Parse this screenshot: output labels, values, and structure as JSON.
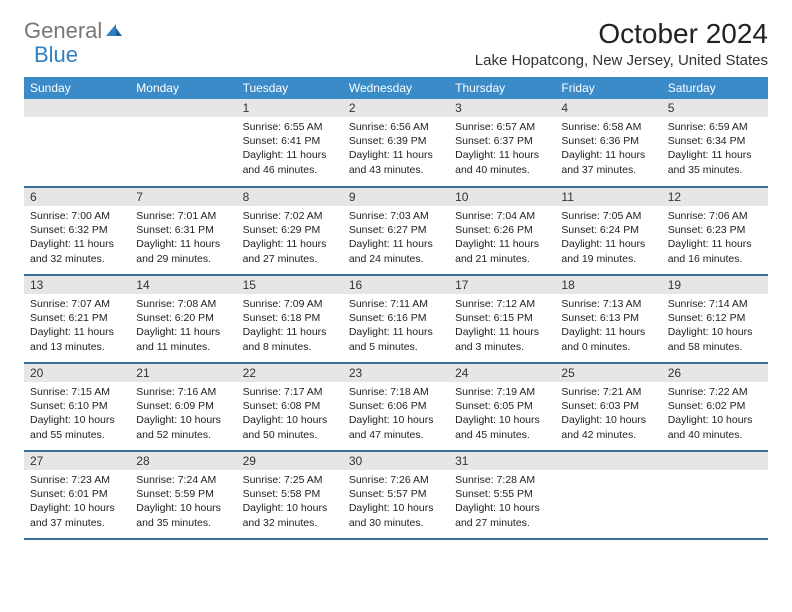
{
  "brand": {
    "part1": "General",
    "part2": "Blue"
  },
  "title": "October 2024",
  "location": "Lake Hopatcong, New Jersey, United States",
  "colors": {
    "header_bg": "#3b8bc9",
    "header_text": "#ffffff",
    "daynum_bg": "#e6e6e6",
    "row_divider": "#3b6fa0",
    "logo_blue": "#2f7fc2",
    "logo_gray": "#777777"
  },
  "weekdays": [
    "Sunday",
    "Monday",
    "Tuesday",
    "Wednesday",
    "Thursday",
    "Friday",
    "Saturday"
  ],
  "weeks": [
    [
      {
        "n": "",
        "sr": "",
        "ss": "",
        "dl": ""
      },
      {
        "n": "",
        "sr": "",
        "ss": "",
        "dl": ""
      },
      {
        "n": "1",
        "sr": "Sunrise: 6:55 AM",
        "ss": "Sunset: 6:41 PM",
        "dl": "Daylight: 11 hours and 46 minutes."
      },
      {
        "n": "2",
        "sr": "Sunrise: 6:56 AM",
        "ss": "Sunset: 6:39 PM",
        "dl": "Daylight: 11 hours and 43 minutes."
      },
      {
        "n": "3",
        "sr": "Sunrise: 6:57 AM",
        "ss": "Sunset: 6:37 PM",
        "dl": "Daylight: 11 hours and 40 minutes."
      },
      {
        "n": "4",
        "sr": "Sunrise: 6:58 AM",
        "ss": "Sunset: 6:36 PM",
        "dl": "Daylight: 11 hours and 37 minutes."
      },
      {
        "n": "5",
        "sr": "Sunrise: 6:59 AM",
        "ss": "Sunset: 6:34 PM",
        "dl": "Daylight: 11 hours and 35 minutes."
      }
    ],
    [
      {
        "n": "6",
        "sr": "Sunrise: 7:00 AM",
        "ss": "Sunset: 6:32 PM",
        "dl": "Daylight: 11 hours and 32 minutes."
      },
      {
        "n": "7",
        "sr": "Sunrise: 7:01 AM",
        "ss": "Sunset: 6:31 PM",
        "dl": "Daylight: 11 hours and 29 minutes."
      },
      {
        "n": "8",
        "sr": "Sunrise: 7:02 AM",
        "ss": "Sunset: 6:29 PM",
        "dl": "Daylight: 11 hours and 27 minutes."
      },
      {
        "n": "9",
        "sr": "Sunrise: 7:03 AM",
        "ss": "Sunset: 6:27 PM",
        "dl": "Daylight: 11 hours and 24 minutes."
      },
      {
        "n": "10",
        "sr": "Sunrise: 7:04 AM",
        "ss": "Sunset: 6:26 PM",
        "dl": "Daylight: 11 hours and 21 minutes."
      },
      {
        "n": "11",
        "sr": "Sunrise: 7:05 AM",
        "ss": "Sunset: 6:24 PM",
        "dl": "Daylight: 11 hours and 19 minutes."
      },
      {
        "n": "12",
        "sr": "Sunrise: 7:06 AM",
        "ss": "Sunset: 6:23 PM",
        "dl": "Daylight: 11 hours and 16 minutes."
      }
    ],
    [
      {
        "n": "13",
        "sr": "Sunrise: 7:07 AM",
        "ss": "Sunset: 6:21 PM",
        "dl": "Daylight: 11 hours and 13 minutes."
      },
      {
        "n": "14",
        "sr": "Sunrise: 7:08 AM",
        "ss": "Sunset: 6:20 PM",
        "dl": "Daylight: 11 hours and 11 minutes."
      },
      {
        "n": "15",
        "sr": "Sunrise: 7:09 AM",
        "ss": "Sunset: 6:18 PM",
        "dl": "Daylight: 11 hours and 8 minutes."
      },
      {
        "n": "16",
        "sr": "Sunrise: 7:11 AM",
        "ss": "Sunset: 6:16 PM",
        "dl": "Daylight: 11 hours and 5 minutes."
      },
      {
        "n": "17",
        "sr": "Sunrise: 7:12 AM",
        "ss": "Sunset: 6:15 PM",
        "dl": "Daylight: 11 hours and 3 minutes."
      },
      {
        "n": "18",
        "sr": "Sunrise: 7:13 AM",
        "ss": "Sunset: 6:13 PM",
        "dl": "Daylight: 11 hours and 0 minutes."
      },
      {
        "n": "19",
        "sr": "Sunrise: 7:14 AM",
        "ss": "Sunset: 6:12 PM",
        "dl": "Daylight: 10 hours and 58 minutes."
      }
    ],
    [
      {
        "n": "20",
        "sr": "Sunrise: 7:15 AM",
        "ss": "Sunset: 6:10 PM",
        "dl": "Daylight: 10 hours and 55 minutes."
      },
      {
        "n": "21",
        "sr": "Sunrise: 7:16 AM",
        "ss": "Sunset: 6:09 PM",
        "dl": "Daylight: 10 hours and 52 minutes."
      },
      {
        "n": "22",
        "sr": "Sunrise: 7:17 AM",
        "ss": "Sunset: 6:08 PM",
        "dl": "Daylight: 10 hours and 50 minutes."
      },
      {
        "n": "23",
        "sr": "Sunrise: 7:18 AM",
        "ss": "Sunset: 6:06 PM",
        "dl": "Daylight: 10 hours and 47 minutes."
      },
      {
        "n": "24",
        "sr": "Sunrise: 7:19 AM",
        "ss": "Sunset: 6:05 PM",
        "dl": "Daylight: 10 hours and 45 minutes."
      },
      {
        "n": "25",
        "sr": "Sunrise: 7:21 AM",
        "ss": "Sunset: 6:03 PM",
        "dl": "Daylight: 10 hours and 42 minutes."
      },
      {
        "n": "26",
        "sr": "Sunrise: 7:22 AM",
        "ss": "Sunset: 6:02 PM",
        "dl": "Daylight: 10 hours and 40 minutes."
      }
    ],
    [
      {
        "n": "27",
        "sr": "Sunrise: 7:23 AM",
        "ss": "Sunset: 6:01 PM",
        "dl": "Daylight: 10 hours and 37 minutes."
      },
      {
        "n": "28",
        "sr": "Sunrise: 7:24 AM",
        "ss": "Sunset: 5:59 PM",
        "dl": "Daylight: 10 hours and 35 minutes."
      },
      {
        "n": "29",
        "sr": "Sunrise: 7:25 AM",
        "ss": "Sunset: 5:58 PM",
        "dl": "Daylight: 10 hours and 32 minutes."
      },
      {
        "n": "30",
        "sr": "Sunrise: 7:26 AM",
        "ss": "Sunset: 5:57 PM",
        "dl": "Daylight: 10 hours and 30 minutes."
      },
      {
        "n": "31",
        "sr": "Sunrise: 7:28 AM",
        "ss": "Sunset: 5:55 PM",
        "dl": "Daylight: 10 hours and 27 minutes."
      },
      {
        "n": "",
        "sr": "",
        "ss": "",
        "dl": ""
      },
      {
        "n": "",
        "sr": "",
        "ss": "",
        "dl": ""
      }
    ]
  ]
}
